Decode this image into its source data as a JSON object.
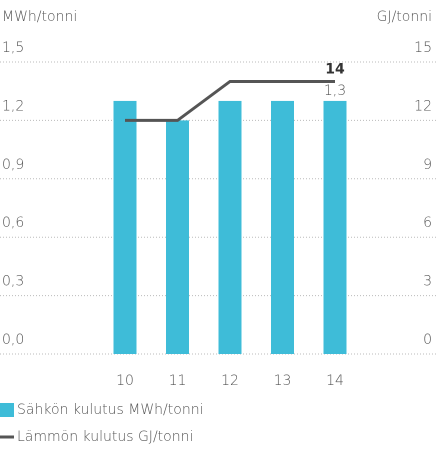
{
  "chart_data": {
    "type": "bar",
    "y_label": "MWh/tonni",
    "y2_label": "GJ/tonni",
    "categories": [
      "10",
      "11",
      "12",
      "13",
      "14"
    ],
    "series": [
      {
        "name": "Sähkön kulutus MWh/tonni",
        "type": "bar",
        "color": "#3ebcd8",
        "values": [
          1.3,
          1.2,
          1.3,
          1.3,
          1.3
        ],
        "value_labels": [
          null,
          null,
          null,
          null,
          "1,3"
        ]
      },
      {
        "name": "Lämmön kulutus GJ/tonni",
        "type": "line",
        "axis": "y2",
        "color": "#555555",
        "values": [
          12,
          12,
          14,
          14,
          14
        ],
        "value_labels": [
          null,
          null,
          null,
          null,
          "14"
        ]
      }
    ],
    "ylim": [
      0,
      1.5
    ],
    "yticks": [
      {
        "value": 0,
        "label": "0,0"
      },
      {
        "value": 0.3,
        "label": "0,3"
      },
      {
        "value": 0.6,
        "label": "0,6"
      },
      {
        "value": 0.9,
        "label": "0,9"
      },
      {
        "value": 1.2,
        "label": "1,2"
      },
      {
        "value": 1.5,
        "label": "1,5"
      }
    ],
    "y2lim": [
      0,
      15
    ],
    "y2ticks": [
      0,
      3,
      6,
      9,
      12,
      15
    ],
    "grid": true
  }
}
